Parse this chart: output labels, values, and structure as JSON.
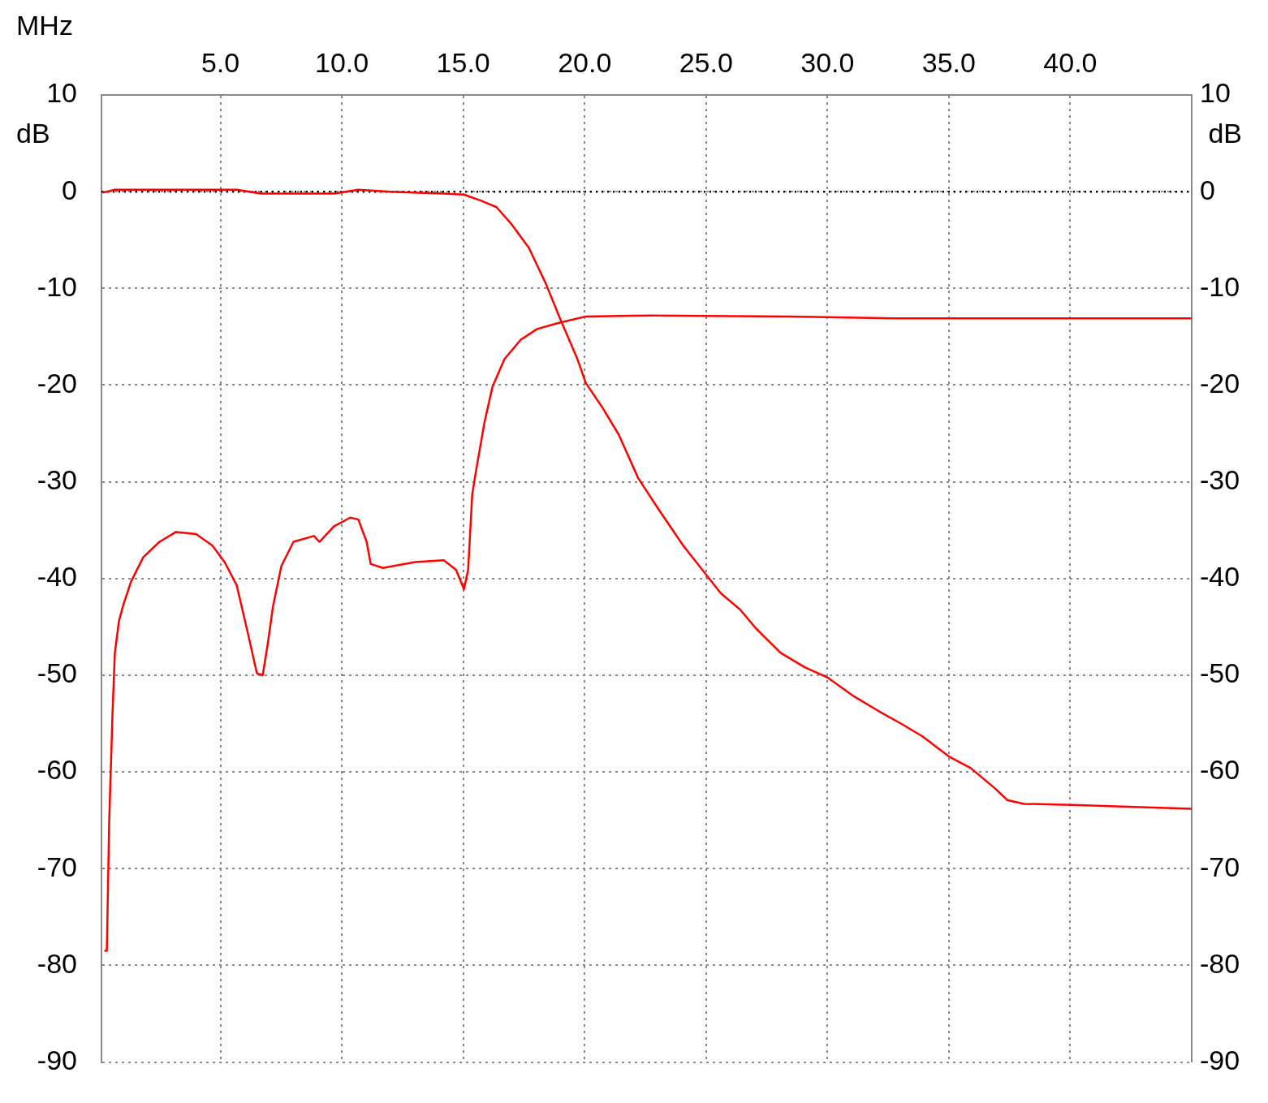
{
  "chart_data": {
    "type": "line",
    "xlabel": "MHz",
    "ylabel": "dB",
    "y2label": "dB",
    "xlim": [
      0.1,
      45
    ],
    "xticks": [
      {
        "value": 5,
        "label": "5.0"
      },
      {
        "value": 10,
        "label": "10.0"
      },
      {
        "value": 15,
        "label": "15.0"
      },
      {
        "value": 20,
        "label": "20.0"
      },
      {
        "value": 25,
        "label": "25.0"
      },
      {
        "value": 30,
        "label": "30.0"
      },
      {
        "value": 35,
        "label": "35.0"
      },
      {
        "value": 40,
        "label": "40.0"
      }
    ],
    "ylim": [
      -90,
      10
    ],
    "yticks": [
      -90,
      -80,
      -70,
      -60,
      -50,
      -40,
      -30,
      -20,
      -10,
      0,
      10
    ],
    "y2lim": [
      -90,
      10
    ],
    "y2ticks": [
      -90,
      -80,
      -70,
      -60,
      -50,
      -40,
      -30,
      -20,
      -10,
      0,
      10
    ],
    "grid": true,
    "marker": "none",
    "line_style": "solid",
    "ref_lines": [
      {
        "axis": "y",
        "value": 0,
        "color": "#000000",
        "line_style": "dotted"
      }
    ],
    "series": [
      {
        "color": "#ff0000",
        "x": [
          0.15,
          0.65,
          2.66,
          5.67,
          6.67,
          9.68,
          10.68,
          12.0,
          14.2,
          15.03,
          15.7,
          16.37,
          17.0,
          17.7,
          18.4,
          19.0,
          19.7,
          20.05,
          20.7,
          21.4,
          22.2,
          23.06,
          24.06,
          24.97,
          25.6,
          26.4,
          27.07,
          28.08,
          29.08,
          29.98,
          31.1,
          32.1,
          33.1,
          33.9,
          35.0,
          35.9,
          36.9,
          37.4,
          38.1,
          40.1,
          42.4,
          45
        ],
        "values": [
          -0.1,
          0.2,
          0.2,
          0.2,
          -0.2,
          -0.2,
          0.2,
          0,
          -0.2,
          -0.3,
          -0.9,
          -1.6,
          -3.4,
          -5.8,
          -9.5,
          -13.2,
          -17.3,
          -19.8,
          -22.2,
          -25.1,
          -29.6,
          -32.9,
          -36.6,
          -39.5,
          -41.5,
          -43.2,
          -45.2,
          -47.7,
          -49.2,
          -50.2,
          -52.2,
          -53.7,
          -55.1,
          -56.3,
          -58.4,
          -59.6,
          -61.7,
          -62.9,
          -63.3,
          -63.4,
          -63.6,
          -63.8
        ]
      },
      {
        "color": "#ff0000",
        "x": [
          0.22,
          0.32,
          0.42,
          0.55,
          0.65,
          0.82,
          0.99,
          1.32,
          1.82,
          2.49,
          3.16,
          4.0,
          4.67,
          5.17,
          5.67,
          5.94,
          6.17,
          6.5,
          6.74,
          6.94,
          7.17,
          7.51,
          8.01,
          8.85,
          9.08,
          9.68,
          10.35,
          10.68,
          11.02,
          11.19,
          11.69,
          13.03,
          14.2,
          14.7,
          15.03,
          15.2,
          15.37,
          15.53,
          15.87,
          16.2,
          16.7,
          17.37,
          18.04,
          18.88,
          20.05,
          22.7,
          28.41,
          32.76,
          45
        ],
        "values": [
          -78.5,
          -78.5,
          -64.9,
          -54.3,
          -47.7,
          -44.4,
          -42.8,
          -40.3,
          -37.8,
          -36.2,
          -35.2,
          -35.4,
          -36.6,
          -38.3,
          -40.7,
          -43.6,
          -46.1,
          -49.8,
          -50.0,
          -46.9,
          -42.8,
          -38.7,
          -36.2,
          -35.6,
          -36.2,
          -34.6,
          -33.7,
          -33.9,
          -36.2,
          -38.5,
          -38.9,
          -38.3,
          -38.1,
          -39.1,
          -41.1,
          -39.1,
          -31.3,
          -28.8,
          -23.9,
          -20.2,
          -17.3,
          -15.3,
          -14.2,
          -13.6,
          -12.9,
          -12.8,
          -12.9,
          -13.1,
          -13.1
        ]
      }
    ]
  }
}
